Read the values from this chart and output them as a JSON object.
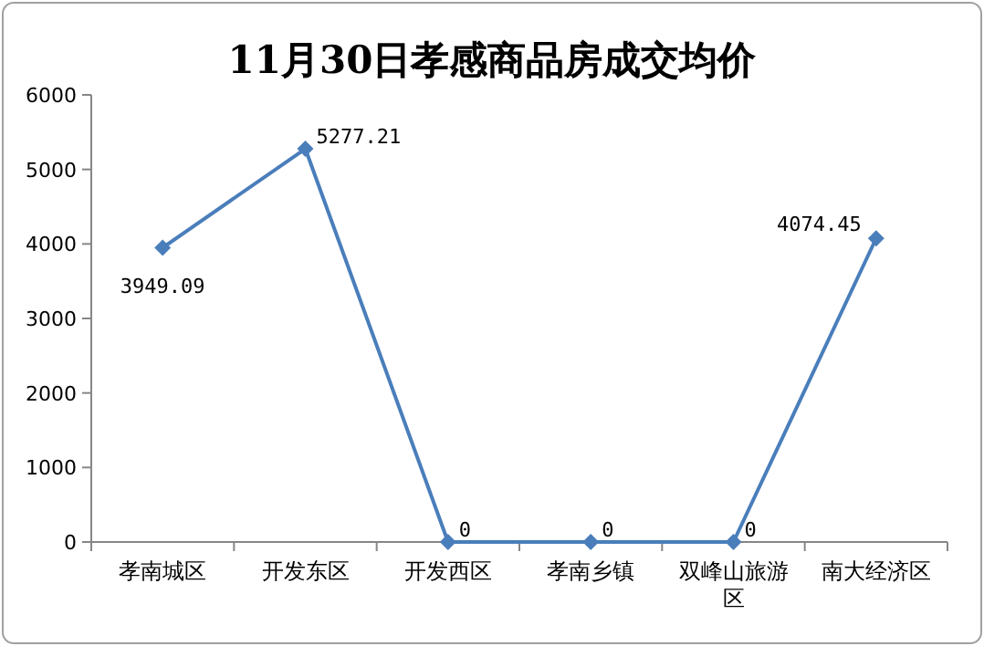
{
  "chart_data": {
    "type": "line",
    "title": "11月30日孝感商品房成交均价",
    "categories": [
      "孝南城区",
      "开发东区",
      "开发西区",
      "孝南乡镇",
      "双峰山旅游区",
      "南大经济区"
    ],
    "series": [
      {
        "color": "#4a7ebb",
        "values": [
          3949.09,
          5277.21,
          0,
          0,
          0,
          4074.45
        ]
      }
    ],
    "ylim": [
      0,
      6000
    ],
    "yticks": [
      0,
      1000,
      2000,
      3000,
      4000,
      5000,
      6000
    ],
    "data_labels": true,
    "marker": "diamond",
    "line_style": "solid"
  }
}
